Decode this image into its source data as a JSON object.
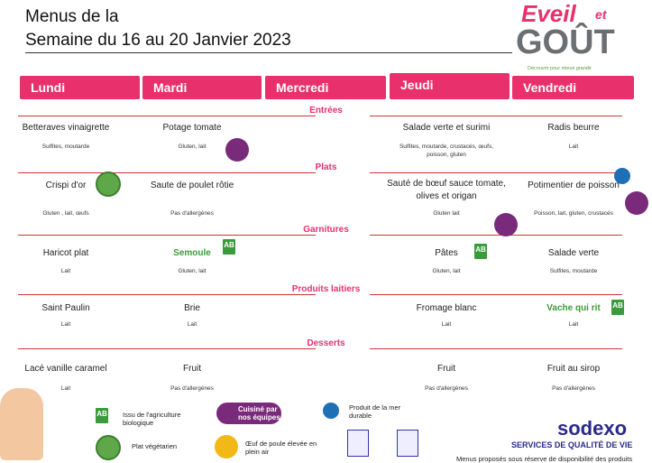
{
  "header": {
    "title_line1": "Menus de la",
    "title_line2": "Semaine du 16 au 20 Janvier 2023",
    "logo": [
      "Eveil",
      "et",
      "GOÛT",
      "Découvrir pour mieux grandir"
    ]
  },
  "days": [
    "Lundi",
    "Mardi",
    "Mercredi",
    "Jeudi",
    "Vendredi"
  ],
  "sections": [
    {
      "name": "Entrées",
      "dishes": [
        {
          "name": "Betteraves vinaigrette",
          "allergens": "Sulfites, moutarde"
        },
        {
          "name": "Potage tomate",
          "allergens": "Gluten, lait"
        },
        null,
        {
          "name": "Salade verte et surimi",
          "allergens": "Sulfites, moutarde, crustacés, œufs, poisson, gluten"
        },
        {
          "name": "Radis beurre",
          "allergens": "Lait"
        }
      ]
    },
    {
      "name": "Plats",
      "dishes": [
        {
          "name": "Crispi d'or",
          "allergens": "Gluten , lait,  œufs"
        },
        {
          "name": "Saute de poulet rôtie",
          "allergens": "Pas d'allergènes"
        },
        null,
        {
          "name": "Sauté de bœuf sauce tomate, olives et origan",
          "allergens": "Gluten lait"
        },
        {
          "name": "Potimentier de poisson",
          "allergens": "Poisson, lait, gluten, crustacés"
        }
      ]
    },
    {
      "name": "Garnitures",
      "dishes": [
        {
          "name": "Haricot plat",
          "allergens": "Lait"
        },
        {
          "name": "Semoule",
          "allergens": "Gluten, lait",
          "color": "#3a9a3a"
        },
        null,
        {
          "name": "Pâtes",
          "allergens": "Gluten, lait"
        },
        {
          "name": "Salade verte",
          "allergens": "Sulfites, moutarde"
        }
      ]
    },
    {
      "name": "Produits laitiers",
      "dishes": [
        {
          "name": "Saint Paulin",
          "allergens": "Lait"
        },
        {
          "name": "Brie",
          "allergens": "Lait"
        },
        null,
        {
          "name": "Fromage blanc",
          "allergens": "Lait"
        },
        {
          "name": "Vache qui rit",
          "allergens": "Lait",
          "color": "#3a9a3a"
        }
      ]
    },
    {
      "name": "Desserts",
      "dishes": [
        {
          "name": "Lacé vanille caramel",
          "allergens": "Lait"
        },
        {
          "name": "Fruit",
          "allergens": "Pas d'allergènes"
        },
        null,
        {
          "name": "Fruit",
          "allergens": "Pas d'allergènes"
        },
        {
          "name": "Fruit au sirop",
          "allergens": "Pas d'allergènes"
        }
      ]
    }
  ],
  "legend": [
    "Issu de l'agriculture biologique",
    "Plat végétarien",
    "Cuisiné par nos équipes",
    "Œuf de poule élevée en plein air",
    "Produit de la mer durable"
  ],
  "footer": {
    "brand": "sodexo",
    "tagline": "SERVICES DE QUALITÉ DE VIE",
    "note": "Menus proposés sous réserve de disponibilité des produits"
  }
}
